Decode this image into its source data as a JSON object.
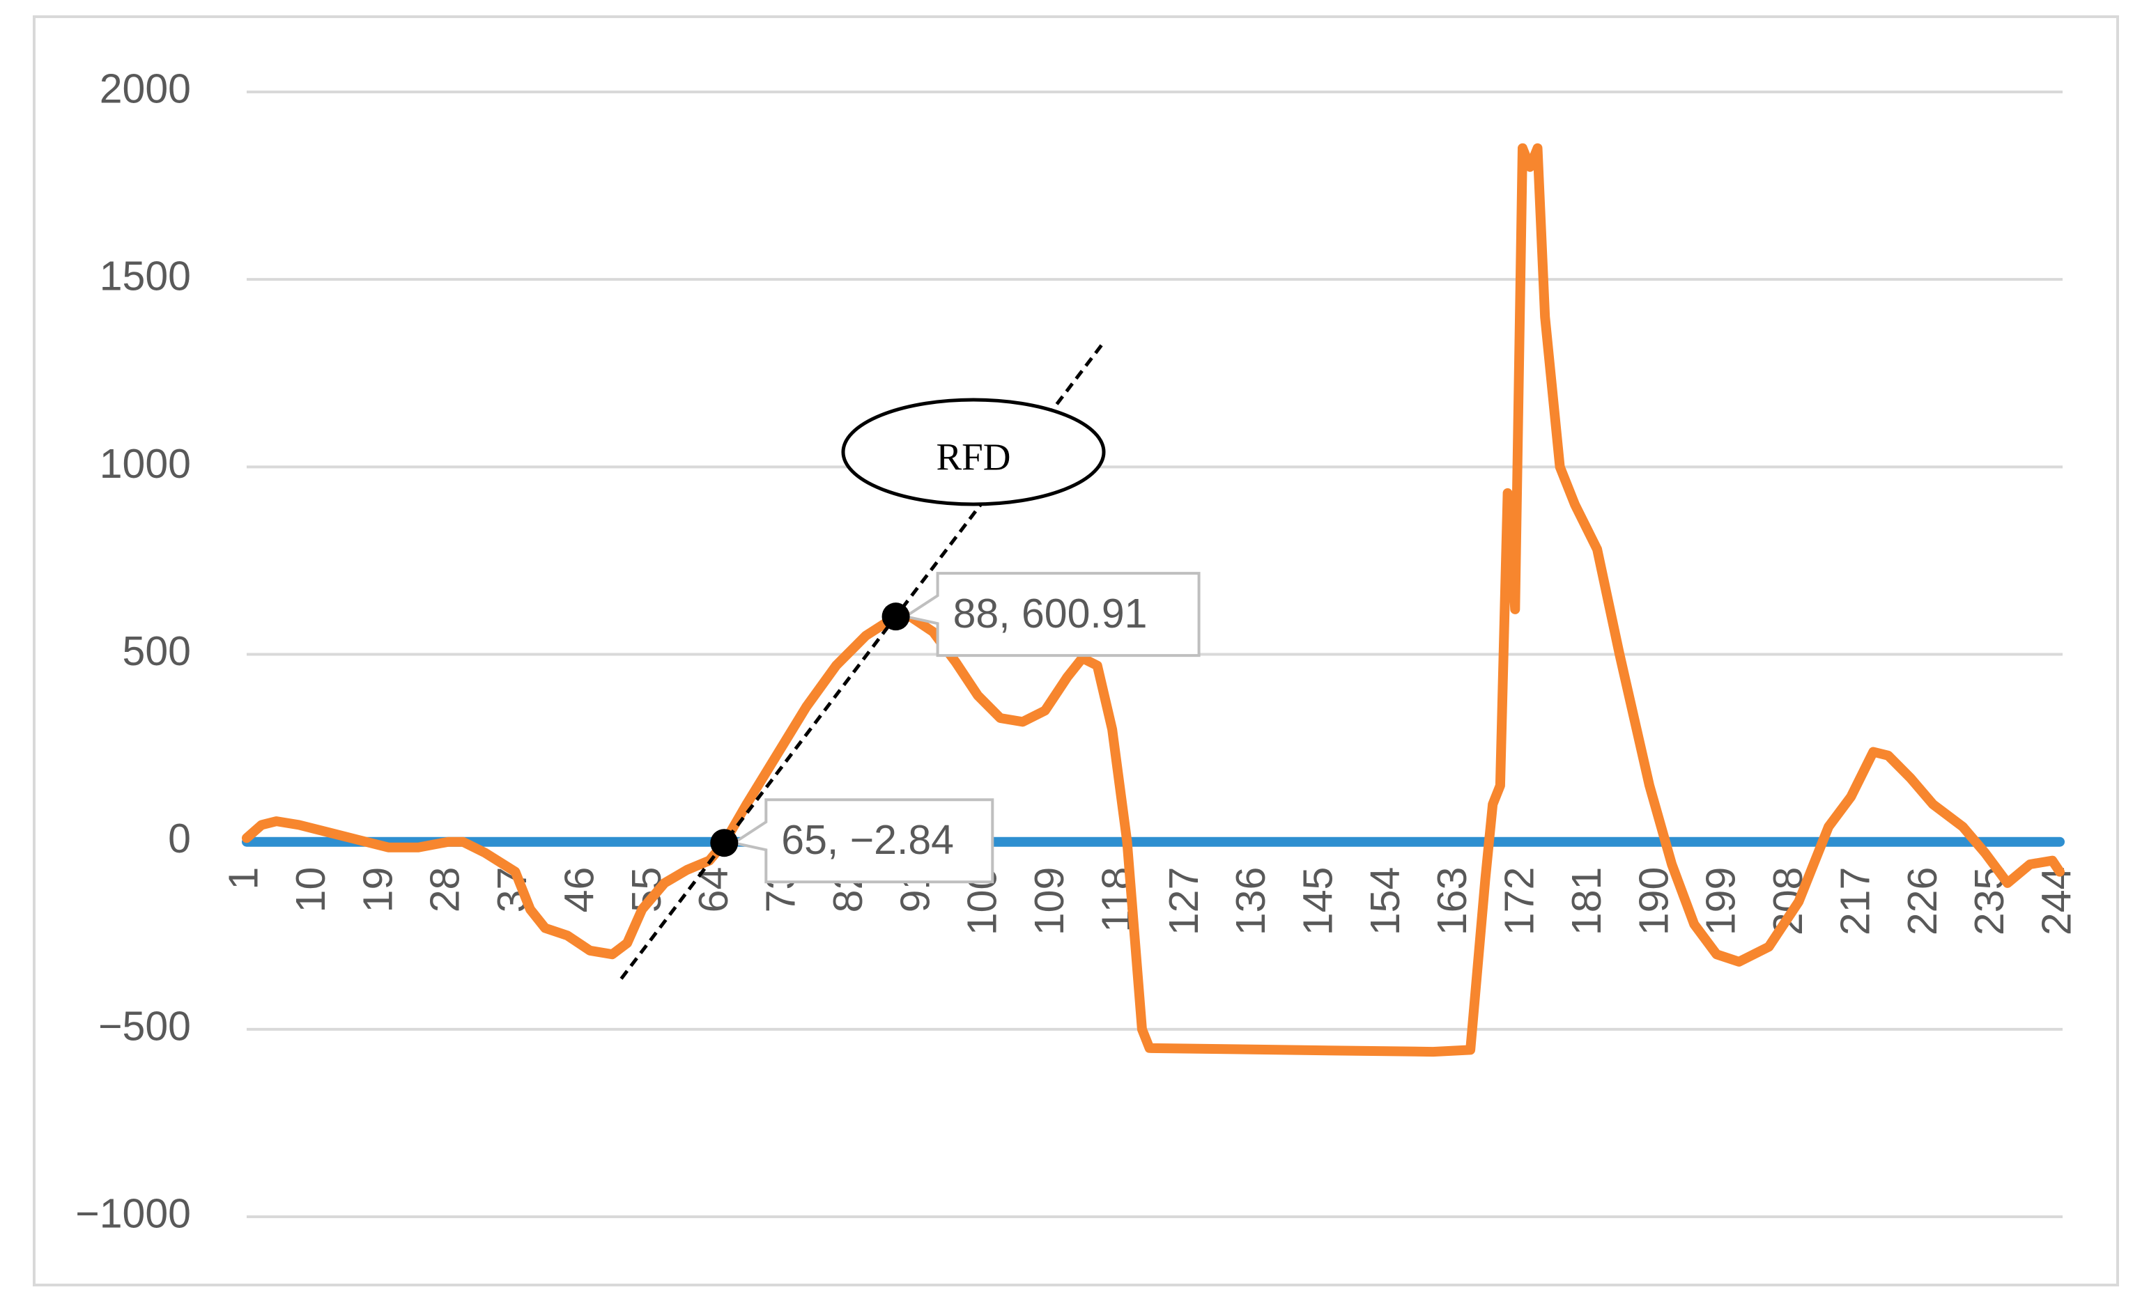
{
  "chart_data": {
    "type": "line",
    "xlim": [
      1,
      244
    ],
    "xticks": [
      1,
      10,
      19,
      28,
      37,
      46,
      55,
      64,
      73,
      82,
      91,
      100,
      109,
      118,
      127,
      136,
      145,
      154,
      163,
      172,
      181,
      190,
      199,
      208,
      217,
      226,
      235,
      244
    ],
    "ylim": [
      -1000,
      2000
    ],
    "yticks": [
      {
        "value": -1000,
        "label": "−1000"
      },
      {
        "value": -500,
        "label": "−500"
      },
      0,
      500,
      1000,
      1500,
      2000
    ],
    "grid": true,
    "series": [
      {
        "color": "#2e8fd0",
        "x": [
          1,
          244
        ],
        "values": [
          0,
          0
        ]
      },
      {
        "color": "#f7862e",
        "x": [
          1,
          3,
          5,
          8,
          12,
          16,
          20,
          24,
          28,
          30,
          33,
          37,
          39,
          41,
          44,
          47,
          50,
          52,
          54,
          57,
          60,
          63,
          65,
          68,
          72,
          76,
          80,
          84,
          88,
          90,
          93,
          96,
          99,
          102,
          105,
          108,
          111,
          113,
          115,
          117,
          119,
          120,
          121,
          122,
          140,
          160,
          165,
          167,
          168,
          169,
          170,
          171,
          172,
          173,
          174,
          175,
          177,
          179,
          182,
          185,
          189,
          192,
          195,
          198,
          201,
          205,
          209,
          213,
          216,
          219,
          221,
          224,
          227,
          231,
          234,
          237,
          240,
          243,
          244
        ],
        "values": [
          10,
          45,
          55,
          45,
          25,
          5,
          -15,
          -15,
          0,
          0,
          -30,
          -80,
          -180,
          -230,
          -250,
          -290,
          -300,
          -270,
          -180,
          -110,
          -75,
          -50,
          -3,
          100,
          230,
          360,
          470,
          550,
          601,
          600,
          560,
          480,
          390,
          330,
          320,
          350,
          440,
          490,
          470,
          300,
          0,
          -250,
          -500,
          -550,
          -555,
          -560,
          -555,
          -100,
          100,
          150,
          930,
          620,
          1850,
          1800,
          1850,
          1400,
          1000,
          900,
          780,
          500,
          150,
          -60,
          -220,
          -300,
          -320,
          -280,
          -160,
          40,
          120,
          240,
          230,
          170,
          100,
          40,
          -30,
          -110,
          -60,
          -50,
          -80
        ]
      }
    ],
    "annotations": [
      {
        "x": 88,
        "y": 600.91,
        "label": "88, 600.91"
      },
      {
        "x": 65,
        "y": -2.84,
        "label": "65, −2.84"
      },
      {
        "label": "RFD"
      }
    ]
  }
}
